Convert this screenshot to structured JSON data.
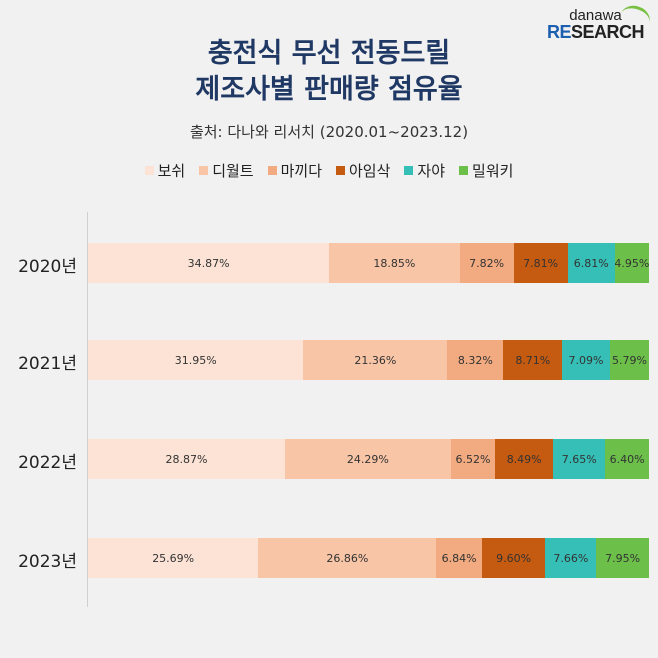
{
  "logo": {
    "top": "danawa",
    "bottom_re": "RE",
    "bottom_rest": "SEARCH"
  },
  "chart_data": {
    "type": "bar",
    "orientation": "horizontal",
    "stacked": true,
    "title_lines": [
      "충전식 무선 전동드릴",
      "제조사별 판매량 점유율"
    ],
    "subtitle": "출처: 다나와 리서치 (2020.01~2023.12)",
    "categories": [
      "2020년",
      "2021년",
      "2022년",
      "2023년"
    ],
    "series": [
      {
        "name": "보쉬",
        "color": "#fce3d5",
        "values": [
          34.87,
          31.95,
          28.87,
          25.69
        ],
        "labels": [
          "34.87%",
          "31.95%",
          "28.87%",
          "25.69%"
        ]
      },
      {
        "name": "디월트",
        "color": "#f8c5a6",
        "values": [
          18.85,
          21.36,
          24.29,
          26.86
        ],
        "labels": [
          "18.85%",
          "21.36%",
          "24.29%",
          "26.86%"
        ]
      },
      {
        "name": "마끼다",
        "color": "#f2ab80",
        "values": [
          7.82,
          8.32,
          6.52,
          6.84
        ],
        "labels": [
          "7.82%",
          "8.32%",
          "6.52%",
          "6.84%"
        ]
      },
      {
        "name": "아임삭",
        "color": "#c55a11",
        "values": [
          7.81,
          8.71,
          8.49,
          9.6
        ],
        "labels": [
          "7.81%",
          "8.71%",
          "8.49%",
          "9.60%"
        ]
      },
      {
        "name": "자야",
        "color": "#35bfb6",
        "values": [
          6.81,
          7.09,
          7.65,
          7.66
        ],
        "labels": [
          "6.81%",
          "7.09%",
          "7.65%",
          "7.66%"
        ]
      },
      {
        "name": "밀워키",
        "color": "#6cc04a",
        "values": [
          4.95,
          5.79,
          6.4,
          7.95
        ],
        "labels": [
          "4.95%",
          "5.79%",
          "6.40%",
          "7.95%"
        ]
      }
    ],
    "legend_position": "top",
    "grid": false,
    "xlabel": "",
    "ylabel": ""
  }
}
